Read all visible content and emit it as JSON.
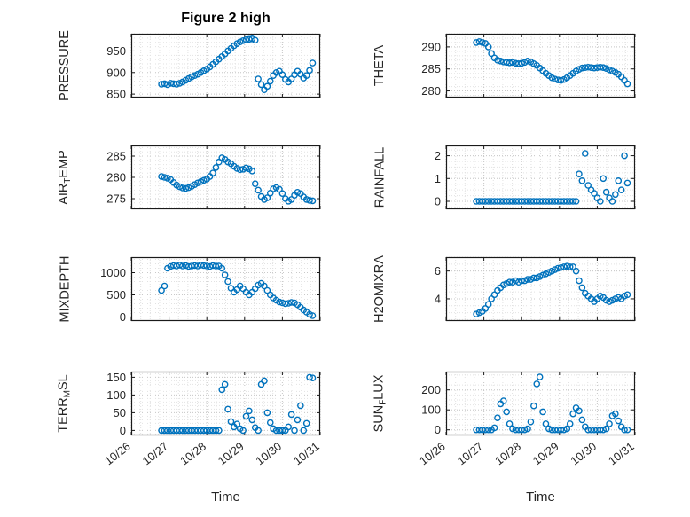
{
  "figure": {
    "title": "Figure 2 high",
    "xlabel": "Time"
  },
  "marker": {
    "color": "#0072BD",
    "radius": 3.1,
    "stroke_width": 1.4
  },
  "grid": {
    "minor_color": "#e2e2e2",
    "major_color": "#c9c9c9",
    "axis_color": "#1a1a1a"
  },
  "axis": {
    "xlim": [
      0,
      5
    ],
    "xticks": [
      0,
      1,
      2,
      3,
      4,
      5
    ],
    "xticklabels": [
      "10/26",
      "10/27",
      "10/28",
      "10/29",
      "10/30",
      "10/31"
    ],
    "x_minor_step": 0.25
  },
  "chart_data": {
    "type": "scatter",
    "x_start": 0.8,
    "x_step": 0.08,
    "n_points": 51,
    "charts": [
      {
        "name": "pressure",
        "ylabel_parts": [
          {
            "text": "PRESSURE",
            "sub": false
          }
        ],
        "yticks": [
          850,
          900,
          950
        ],
        "ylim": [
          842,
          990
        ],
        "y_minor": 10,
        "y": [
          873,
          874,
          872,
          875,
          874,
          873,
          875,
          878,
          882,
          886,
          890,
          893,
          896,
          900,
          904,
          908,
          913,
          919,
          925,
          931,
          937,
          943,
          950,
          956,
          962,
          967,
          971,
          974,
          976,
          977,
          978,
          975,
          885,
          872,
          860,
          868,
          880,
          893,
          900,
          903,
          895,
          884,
          878,
          885,
          895,
          903,
          896,
          887,
          893,
          905,
          922
        ]
      },
      {
        "name": "theta",
        "ylabel_parts": [
          {
            "text": "THETA",
            "sub": false
          }
        ],
        "yticks": [
          280,
          285,
          290
        ],
        "ylim": [
          278.5,
          293
        ],
        "y_minor": 1,
        "y": [
          291,
          291.2,
          291,
          290.8,
          290,
          288.5,
          287.5,
          287,
          286.8,
          286.6,
          286.5,
          286.4,
          286.5,
          286.3,
          286.2,
          286.3,
          286.5,
          286.8,
          286.6,
          286.2,
          285.8,
          285.2,
          284.6,
          284,
          283.5,
          283,
          282.7,
          282.5,
          282.4,
          282.6,
          283,
          283.5,
          284,
          284.5,
          284.9,
          285.2,
          285.3,
          285.4,
          285.3,
          285.2,
          285.3,
          285.4,
          285.3,
          285.1,
          284.8,
          284.5,
          284.2,
          283.8,
          283.2,
          282.4,
          281.6
        ]
      },
      {
        "name": "air-temp",
        "ylabel_parts": [
          {
            "text": "AIR",
            "sub": false
          },
          {
            "text": "T",
            "sub": true
          },
          {
            "text": "EMP",
            "sub": false
          }
        ],
        "yticks": [
          275,
          280,
          285
        ],
        "ylim": [
          272.5,
          287.5
        ],
        "y_minor": 1,
        "y": [
          280.2,
          280,
          279.8,
          279.5,
          278.8,
          278.2,
          277.8,
          277.5,
          277.4,
          277.6,
          277.9,
          278.3,
          278.7,
          279,
          279.3,
          279.6,
          280.2,
          281,
          282.3,
          283.6,
          284.6,
          284.2,
          283.6,
          283.2,
          282.6,
          282.1,
          281.8,
          281.9,
          282.2,
          282,
          281.5,
          278.5,
          277,
          275.5,
          274.8,
          275.2,
          276.3,
          277.3,
          277.6,
          277.2,
          276.2,
          275,
          274.4,
          274.8,
          275.8,
          276.5,
          276.2,
          275.4,
          274.8,
          274.6,
          274.5
        ]
      },
      {
        "name": "rainfall",
        "ylabel_parts": [
          {
            "text": "RAINFALL",
            "sub": false
          }
        ],
        "yticks": [
          0,
          1,
          2
        ],
        "ylim": [
          -0.35,
          2.45
        ],
        "y_minor": 0.25,
        "y": [
          0,
          0,
          0,
          0,
          0,
          0,
          0,
          0,
          0,
          0,
          0,
          0,
          0,
          0,
          0,
          0,
          0,
          0,
          0,
          0,
          0,
          0,
          0,
          0,
          0,
          0,
          0,
          0,
          0,
          0,
          0,
          0,
          0,
          0,
          1.2,
          0.9,
          2.1,
          0.7,
          0.5,
          0.35,
          0.15,
          0,
          1,
          0.4,
          0.15,
          0,
          0.3,
          0.9,
          0.5,
          2,
          0.8
        ]
      },
      {
        "name": "mixdepth",
        "ylabel_parts": [
          {
            "text": "MIXDEPTH",
            "sub": false
          }
        ],
        "yticks": [
          0,
          500,
          1000
        ],
        "ylim": [
          -90,
          1350
        ],
        "y_minor": 100,
        "y": [
          600,
          700,
          1100,
          1140,
          1160,
          1150,
          1170,
          1150,
          1160,
          1140,
          1150,
          1160,
          1150,
          1170,
          1160,
          1150,
          1140,
          1160,
          1150,
          1150,
          1100,
          950,
          800,
          650,
          560,
          620,
          700,
          640,
          560,
          500,
          560,
          640,
          720,
          760,
          700,
          600,
          500,
          430,
          380,
          340,
          320,
          300,
          310,
          330,
          320,
          280,
          220,
          160,
          110,
          60,
          30
        ]
      },
      {
        "name": "h2omixra",
        "ylabel_parts": [
          {
            "text": "H2OMIXRA",
            "sub": false
          }
        ],
        "yticks": [
          4,
          6
        ],
        "ylim": [
          2.4,
          7
        ],
        "y_minor": 0.5,
        "y": [
          2.9,
          3,
          3.1,
          3.3,
          3.6,
          4,
          4.3,
          4.6,
          4.8,
          5,
          5.1,
          5.2,
          5.2,
          5.3,
          5.2,
          5.3,
          5.3,
          5.4,
          5.4,
          5.5,
          5.5,
          5.6,
          5.7,
          5.8,
          5.9,
          6,
          6.1,
          6.2,
          6.25,
          6.3,
          6.35,
          6.3,
          6.3,
          6,
          5.3,
          4.8,
          4.4,
          4.2,
          4,
          3.8,
          4,
          4.2,
          4.1,
          3.9,
          3.8,
          3.9,
          4,
          4.1,
          4,
          4.2,
          4.3
        ]
      },
      {
        "name": "terr-msl",
        "ylabel_parts": [
          {
            "text": "TERR",
            "sub": false
          },
          {
            "text": "M",
            "sub": true
          },
          {
            "text": "SL",
            "sub": false
          }
        ],
        "yticks": [
          0,
          50,
          100,
          150
        ],
        "ylim": [
          -14,
          166
        ],
        "y_minor": 10,
        "y": [
          0,
          0,
          0,
          0,
          0,
          0,
          0,
          0,
          0,
          0,
          0,
          0,
          0,
          0,
          0,
          0,
          0,
          0,
          0,
          0,
          115,
          130,
          60,
          25,
          10,
          18,
          5,
          0,
          40,
          55,
          30,
          8,
          0,
          130,
          140,
          50,
          22,
          5,
          0,
          0,
          0,
          0,
          10,
          45,
          0,
          30,
          70,
          0,
          20,
          150,
          148
        ]
      },
      {
        "name": "sun-flux",
        "ylabel_parts": [
          {
            "text": "SUN",
            "sub": false
          },
          {
            "text": "F",
            "sub": true
          },
          {
            "text": "LUX",
            "sub": false
          }
        ],
        "yticks": [
          0,
          100,
          200
        ],
        "ylim": [
          -28,
          292
        ],
        "y_minor": 25,
        "y": [
          0,
          0,
          0,
          0,
          0,
          0,
          10,
          60,
          130,
          145,
          90,
          30,
          5,
          0,
          0,
          0,
          0,
          5,
          40,
          120,
          230,
          265,
          90,
          30,
          5,
          0,
          0,
          0,
          0,
          0,
          5,
          30,
          80,
          110,
          95,
          50,
          15,
          0,
          0,
          0,
          0,
          0,
          0,
          5,
          30,
          70,
          80,
          45,
          15,
          0,
          0
        ]
      }
    ]
  }
}
